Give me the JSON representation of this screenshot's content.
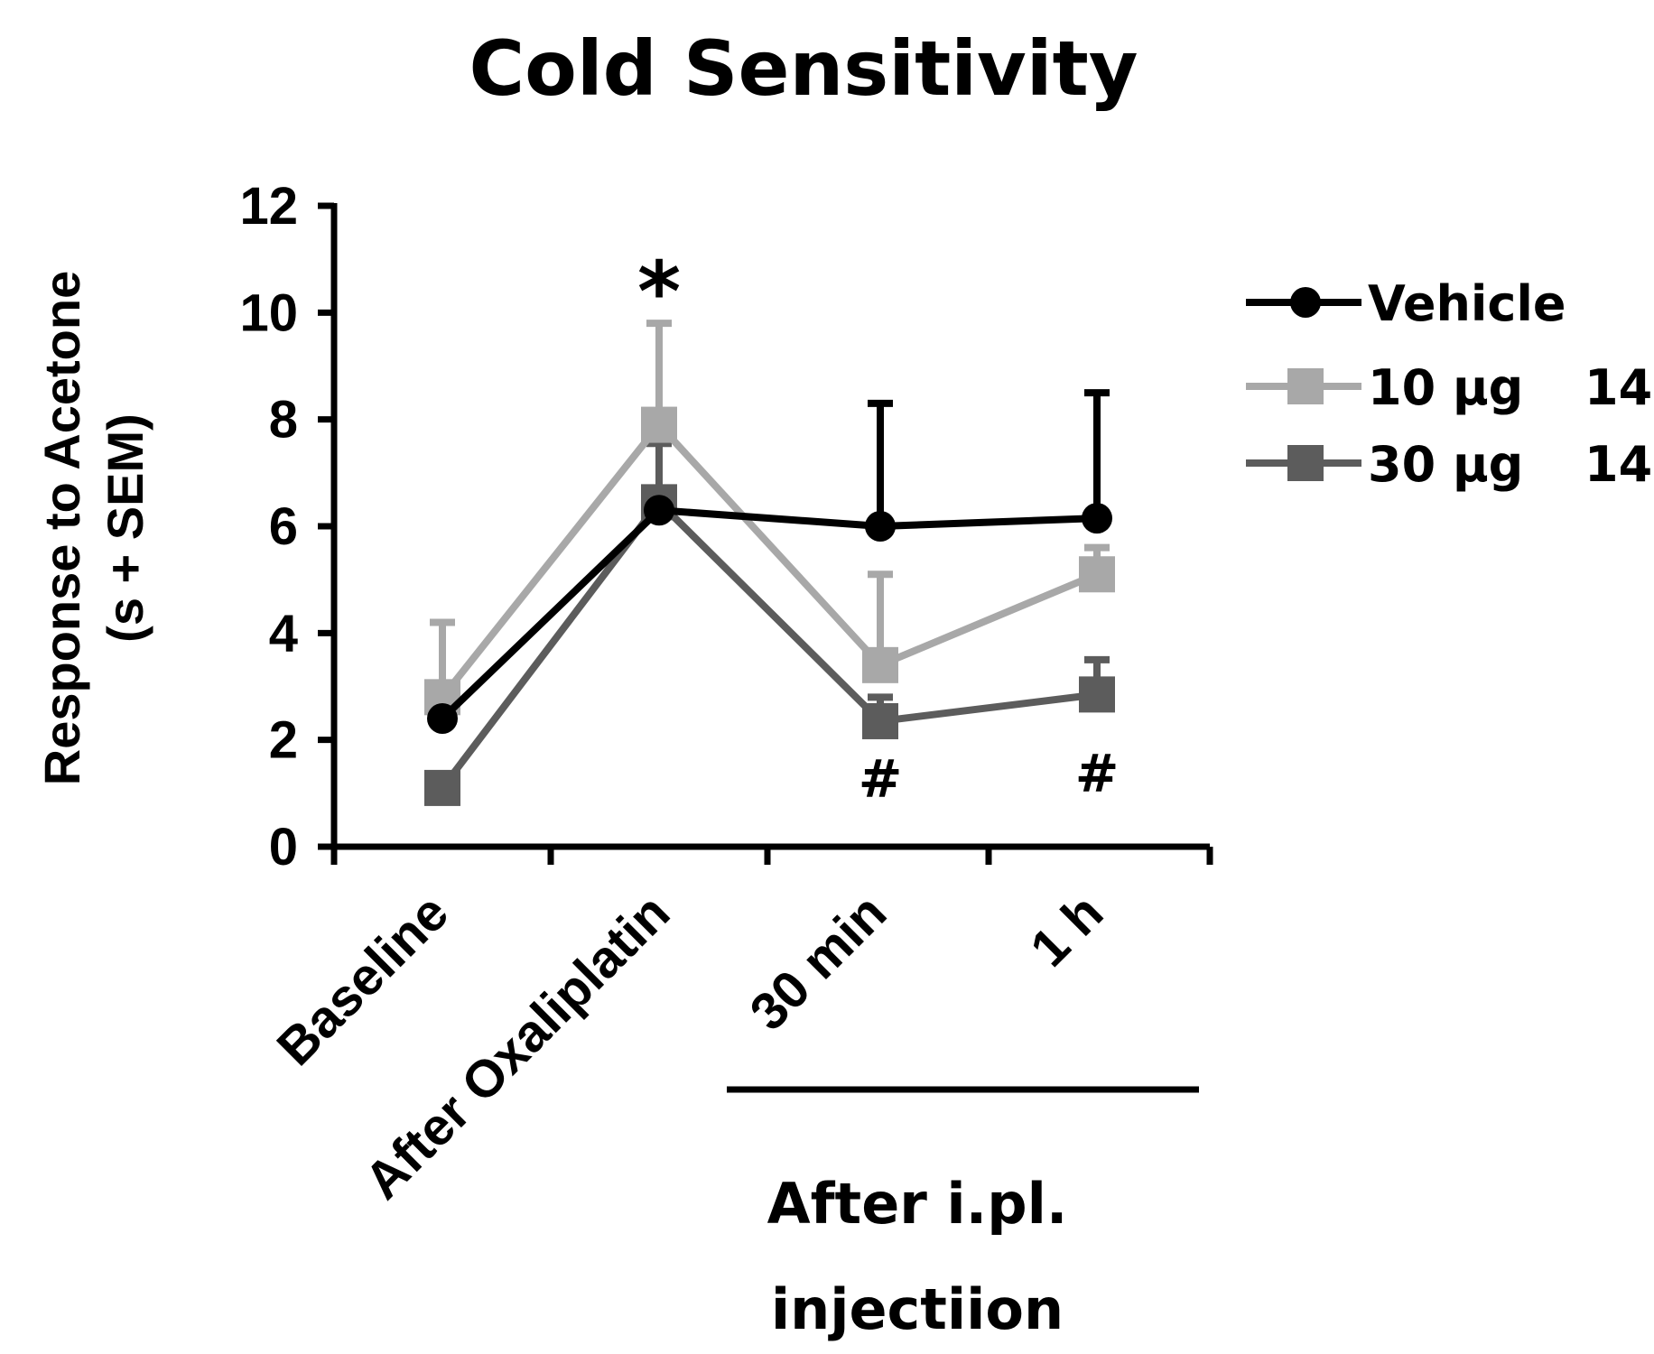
{
  "chart_data": {
    "type": "line",
    "title": "Cold Sensitivity",
    "ylabel_lines": [
      "Response to Acetone",
      "(s + SEM)"
    ],
    "xlabel": "",
    "ylim": [
      0,
      12
    ],
    "yticks": [
      "0",
      "2",
      "4",
      "6",
      "8",
      "10",
      "12"
    ],
    "categories": [
      "Baseline",
      "After Oxaliplatin",
      "30 min",
      "1 h"
    ],
    "group_label_lines": [
      "After i.pl.",
      "injectiion"
    ],
    "grid": false,
    "legend_position": "right",
    "series": [
      {
        "name": "Vehicle",
        "n_label": "",
        "marker": "circle",
        "color": "#000000",
        "values": [
          2.4,
          6.3,
          6.0,
          6.15
        ],
        "sem": [
          0.0,
          0.0,
          2.3,
          2.35
        ]
      },
      {
        "name": "10 μg",
        "n_label": "14",
        "marker": "square",
        "color": "#a8a8a8",
        "values": [
          2.8,
          7.9,
          3.4,
          5.1
        ],
        "sem": [
          1.4,
          1.9,
          1.7,
          0.5
        ]
      },
      {
        "name": "30 μg",
        "n_label": "14",
        "marker": "square",
        "color": "#5c5c5c",
        "values": [
          1.1,
          6.45,
          2.35,
          2.85
        ],
        "sem": [
          0.0,
          1.1,
          0.45,
          0.65
        ]
      }
    ],
    "annotations": [
      {
        "text": "*",
        "category": "After Oxaliplatin",
        "y": 10.5
      },
      {
        "text": "#",
        "category": "30 min",
        "y": 1.3
      },
      {
        "text": "#",
        "category": "1 h",
        "y": 1.4
      }
    ]
  }
}
